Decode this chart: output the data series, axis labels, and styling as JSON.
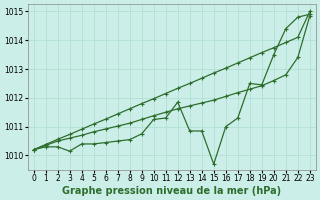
{
  "xlabel": "Graphe pression niveau de la mer (hPa)",
  "ylabel": "",
  "bg_color": "#cceee8",
  "grid_color": "#aaddcc",
  "line_color": "#2d6e2d",
  "x_values": [
    0,
    1,
    2,
    3,
    4,
    5,
    6,
    7,
    8,
    9,
    10,
    11,
    12,
    13,
    14,
    15,
    16,
    17,
    18,
    19,
    20,
    21,
    22,
    23
  ],
  "line1": [
    1010.2,
    1010.3,
    1010.3,
    1010.15,
    1010.4,
    1010.4,
    1010.45,
    1010.5,
    1010.55,
    1010.75,
    1011.25,
    1011.3,
    1011.85,
    1010.85,
    1010.85,
    1009.7,
    1011.0,
    1011.3,
    1012.5,
    1012.45,
    1013.5,
    1014.4,
    1014.8,
    1014.9
  ],
  "line2": [
    1010.2,
    1010.38,
    1010.56,
    1010.73,
    1010.91,
    1011.09,
    1011.26,
    1011.44,
    1011.62,
    1011.8,
    1011.97,
    1012.15,
    1012.33,
    1012.5,
    1012.68,
    1012.86,
    1013.03,
    1013.21,
    1013.39,
    1013.57,
    1013.74,
    1013.92,
    1014.1,
    1015.0
  ],
  "line3": [
    1010.2,
    1010.35,
    1010.5,
    1010.6,
    1010.7,
    1010.82,
    1010.92,
    1011.02,
    1011.12,
    1011.25,
    1011.38,
    1011.5,
    1011.62,
    1011.72,
    1011.82,
    1011.92,
    1012.05,
    1012.18,
    1012.3,
    1012.42,
    1012.6,
    1012.8,
    1013.4,
    1014.85
  ],
  "ylim": [
    1009.5,
    1015.25
  ],
  "yticks": [
    1010,
    1011,
    1012,
    1013,
    1014,
    1015
  ],
  "xticks": [
    0,
    1,
    2,
    3,
    4,
    5,
    6,
    7,
    8,
    9,
    10,
    11,
    12,
    13,
    14,
    15,
    16,
    17,
    18,
    19,
    20,
    21,
    22,
    23
  ],
  "marker": "+",
  "markersize": 3.5,
  "linewidth": 0.9,
  "xlabel_fontsize": 7,
  "tick_fontsize": 5.5,
  "xlabel_bold": true
}
